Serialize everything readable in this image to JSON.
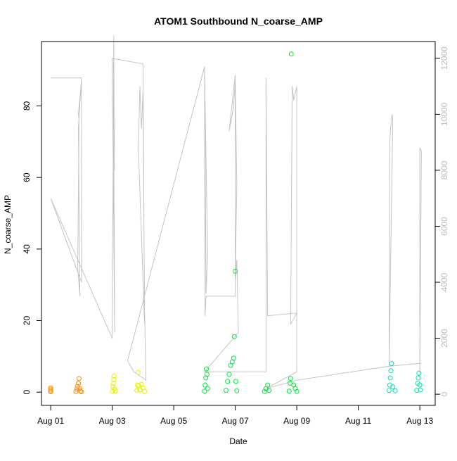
{
  "chart_data": {
    "type": "scatter",
    "title": "ATOM1 Southbound N_coarse_AMP",
    "xlabel": "Date",
    "ylabel": "N_coarse_AMP",
    "x_tick_labels": [
      "Aug 01",
      "Aug 03",
      "Aug 05",
      "Aug 07",
      "Aug 09",
      "Aug 11",
      "Aug 13"
    ],
    "x_tick_values": [
      1,
      3,
      5,
      7,
      9,
      11,
      13
    ],
    "xlim": [
      0.7,
      13.5
    ],
    "ylim": [
      -3.7,
      98
    ],
    "y_ticks": [
      0,
      20,
      40,
      60,
      80
    ],
    "y2_ticks": [
      0,
      2000,
      4000,
      6000,
      8000,
      10000,
      12000
    ],
    "y2lim": [
      -400,
      12600
    ],
    "grid": false,
    "colors": {
      "point_orange": "#ff8c00",
      "point_yellow": "#e6f000",
      "point_green": "#00e640",
      "point_cyan": "#00e6b4",
      "secondary_line": "#c4c4c4",
      "frame": "#000000"
    },
    "series": [
      {
        "color": "#ff8c00",
        "points": [
          [
            1.0,
            1.2
          ],
          [
            1.0,
            0.8
          ],
          [
            1.0,
            0.4
          ],
          [
            1.0,
            0.1
          ],
          [
            1.82,
            0.2
          ],
          [
            1.85,
            0.9
          ],
          [
            1.87,
            1.6
          ],
          [
            1.9,
            2.5
          ],
          [
            1.92,
            3.8
          ],
          [
            1.95,
            1.0
          ],
          [
            1.97,
            0.3
          ],
          [
            2.0,
            0.1
          ]
        ]
      },
      {
        "color": "#e6f000",
        "points": [
          [
            3.0,
            0.2
          ],
          [
            3.02,
            1.5
          ],
          [
            3.04,
            2.5
          ],
          [
            3.05,
            3.5
          ],
          [
            3.06,
            4.5
          ],
          [
            3.08,
            1.0
          ],
          [
            3.1,
            0.3
          ],
          [
            3.8,
            0.5
          ],
          [
            3.82,
            2.0
          ],
          [
            3.84,
            5.5
          ],
          [
            3.86,
            1.8
          ],
          [
            3.9,
            0.7
          ],
          [
            3.95,
            2.2
          ],
          [
            4.0,
            1.2
          ],
          [
            4.05,
            0.2
          ]
        ]
      },
      {
        "color": "#00e640",
        "points": [
          [
            6.0,
            0.3
          ],
          [
            6.02,
            2.0
          ],
          [
            6.04,
            4.0
          ],
          [
            6.06,
            6.5
          ],
          [
            6.08,
            5.0
          ],
          [
            6.1,
            1.0
          ],
          [
            6.7,
            0.5
          ],
          [
            6.75,
            3.0
          ],
          [
            6.8,
            5.0
          ],
          [
            6.85,
            7.5
          ],
          [
            6.9,
            8.5
          ],
          [
            6.95,
            9.5
          ],
          [
            6.97,
            15.5
          ],
          [
            7.0,
            33.8
          ],
          [
            7.02,
            3.0
          ],
          [
            7.05,
            0.4
          ],
          [
            7.95,
            0.2
          ],
          [
            8.0,
            1.0
          ],
          [
            8.05,
            2.0
          ],
          [
            8.1,
            0.5
          ],
          [
            8.75,
            0.3
          ],
          [
            8.78,
            2.5
          ],
          [
            8.8,
            3.8
          ],
          [
            8.82,
            94.5
          ],
          [
            8.9,
            2.0
          ],
          [
            8.95,
            1.0
          ],
          [
            9.0,
            0.2
          ]
        ]
      },
      {
        "color": "#00e6b4",
        "points": [
          [
            12.0,
            0.5
          ],
          [
            12.02,
            2.0
          ],
          [
            12.04,
            4.0
          ],
          [
            12.06,
            6.0
          ],
          [
            12.08,
            8.0
          ],
          [
            12.12,
            1.5
          ],
          [
            12.2,
            0.4
          ],
          [
            12.9,
            0.5
          ],
          [
            12.93,
            2.5
          ],
          [
            12.95,
            4.0
          ],
          [
            12.97,
            5.3
          ],
          [
            13.0,
            2.0
          ],
          [
            13.02,
            0.6
          ]
        ]
      }
    ],
    "secondary_line": [
      [
        1.0,
        11300
      ],
      [
        2.0,
        11300
      ],
      [
        2.0,
        11200
      ],
      [
        1.9,
        10000
      ],
      [
        1.92,
        9800
      ],
      [
        1.88,
        4500
      ],
      [
        1.95,
        3500
      ],
      [
        1.9,
        9500
      ],
      [
        2.0,
        11300
      ],
      [
        2.0,
        7000
      ],
      [
        2.0,
        4000
      ],
      [
        1.0,
        7000
      ],
      [
        2.0,
        4500
      ],
      [
        3.0,
        2000
      ],
      [
        3.05,
        12800
      ],
      [
        3.07,
        8000
      ],
      [
        3.04,
        11800
      ],
      [
        3.08,
        2200
      ],
      [
        3.0,
        12000
      ],
      [
        4.0,
        11800
      ],
      [
        4.05,
        2500
      ],
      [
        3.85,
        8800
      ],
      [
        3.9,
        11000
      ],
      [
        3.95,
        9500
      ],
      [
        4.0,
        10800
      ],
      [
        4.05,
        3000
      ],
      [
        4.1,
        500
      ],
      [
        3.7,
        800
      ],
      [
        3.5,
        1200
      ],
      [
        6.0,
        11700
      ],
      [
        6.05,
        3600
      ],
      [
        6.1,
        5000
      ],
      [
        6.0,
        11600
      ],
      [
        6.02,
        2800
      ],
      [
        6.05,
        3500
      ],
      [
        7.0,
        3500
      ],
      [
        7.0,
        11400
      ],
      [
        6.8,
        9400
      ],
      [
        6.85,
        9700
      ],
      [
        6.9,
        10000
      ],
      [
        6.95,
        10300
      ],
      [
        7.0,
        11300
      ],
      [
        7.05,
        7500
      ],
      [
        7.0,
        4000
      ],
      [
        7.05,
        4800
      ],
      [
        7.1,
        2200
      ],
      [
        6.0,
        800
      ],
      [
        8.0,
        800
      ],
      [
        8.0,
        11300
      ],
      [
        8.05,
        2800
      ],
      [
        9.0,
        2900
      ],
      [
        8.8,
        2500
      ],
      [
        8.85,
        11000
      ],
      [
        8.9,
        10500
      ],
      [
        9.0,
        11000
      ],
      [
        9.0,
        800
      ],
      [
        8.0,
        200
      ],
      [
        9.0,
        500
      ],
      [
        12.0,
        1000
      ],
      [
        12.02,
        9000
      ],
      [
        12.05,
        9500
      ],
      [
        12.08,
        9800
      ],
      [
        12.1,
        10000
      ],
      [
        12.12,
        9800
      ],
      [
        12.0,
        1000
      ],
      [
        13.0,
        1100
      ],
      [
        13.0,
        8800
      ],
      [
        13.05,
        8700
      ],
      [
        13.0,
        500
      ]
    ]
  }
}
